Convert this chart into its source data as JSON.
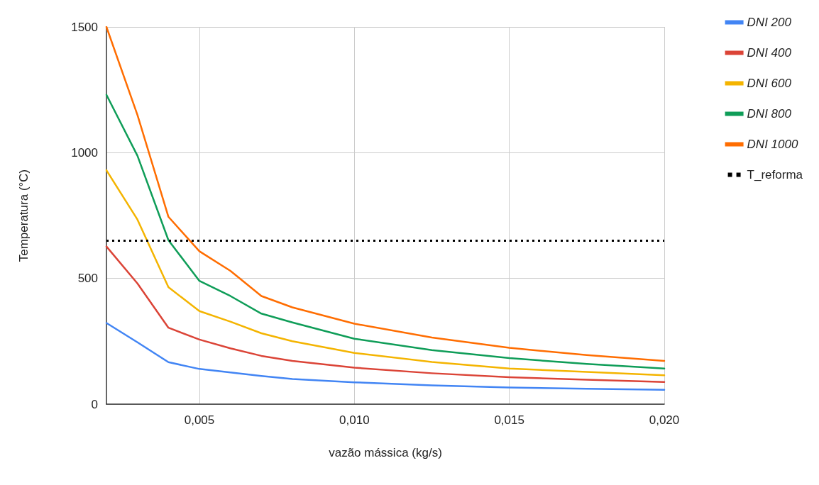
{
  "chart_data": {
    "type": "line",
    "xlabel": "vazão mássica (kg/s)",
    "ylabel": "Temperatura (°C)",
    "x": [
      0.002,
      0.003,
      0.004,
      0.005,
      0.006,
      0.007,
      0.008,
      0.01,
      0.0125,
      0.015,
      0.0175,
      0.02
    ],
    "xlim": [
      0.002,
      0.02
    ],
    "xticks": [
      {
        "value": 0.005,
        "label": "0,005"
      },
      {
        "value": 0.01,
        "label": "0,010"
      },
      {
        "value": 0.015,
        "label": "0,015"
      },
      {
        "value": 0.02,
        "label": "0,020"
      }
    ],
    "ylim": [
      0,
      1500
    ],
    "yticks": [
      0,
      500,
      1000,
      1500
    ],
    "grid": true,
    "legend": "right",
    "marker": "none",
    "series": [
      {
        "name": "DNI 200",
        "color": "#4285f4",
        "values": [
          323,
          246,
          167,
          140,
          126,
          112,
          100,
          87,
          75,
          66,
          61,
          57
        ]
      },
      {
        "name": "DNI 400",
        "color": "#db4437",
        "values": [
          627,
          480,
          304,
          257,
          222,
          192,
          172,
          145,
          123,
          107,
          97,
          88
        ]
      },
      {
        "name": "DNI 600",
        "color": "#f4b400",
        "values": [
          930,
          734,
          465,
          370,
          328,
          282,
          250,
          204,
          168,
          142,
          128,
          115
        ]
      },
      {
        "name": "DNI 800",
        "color": "#0f9d58",
        "values": [
          1230,
          988,
          652,
          490,
          430,
          360,
          325,
          260,
          215,
          183,
          160,
          142
        ]
      },
      {
        "name": "DNI 1000",
        "color": "#ff6d01",
        "values": [
          1500,
          1150,
          745,
          608,
          530,
          430,
          385,
          320,
          265,
          224,
          195,
          172
        ]
      },
      {
        "name": "T_reforma",
        "color": "#000000",
        "x": [
          0.002,
          0.02
        ],
        "values": [
          650,
          650
        ],
        "line_style": "dotted"
      }
    ]
  }
}
